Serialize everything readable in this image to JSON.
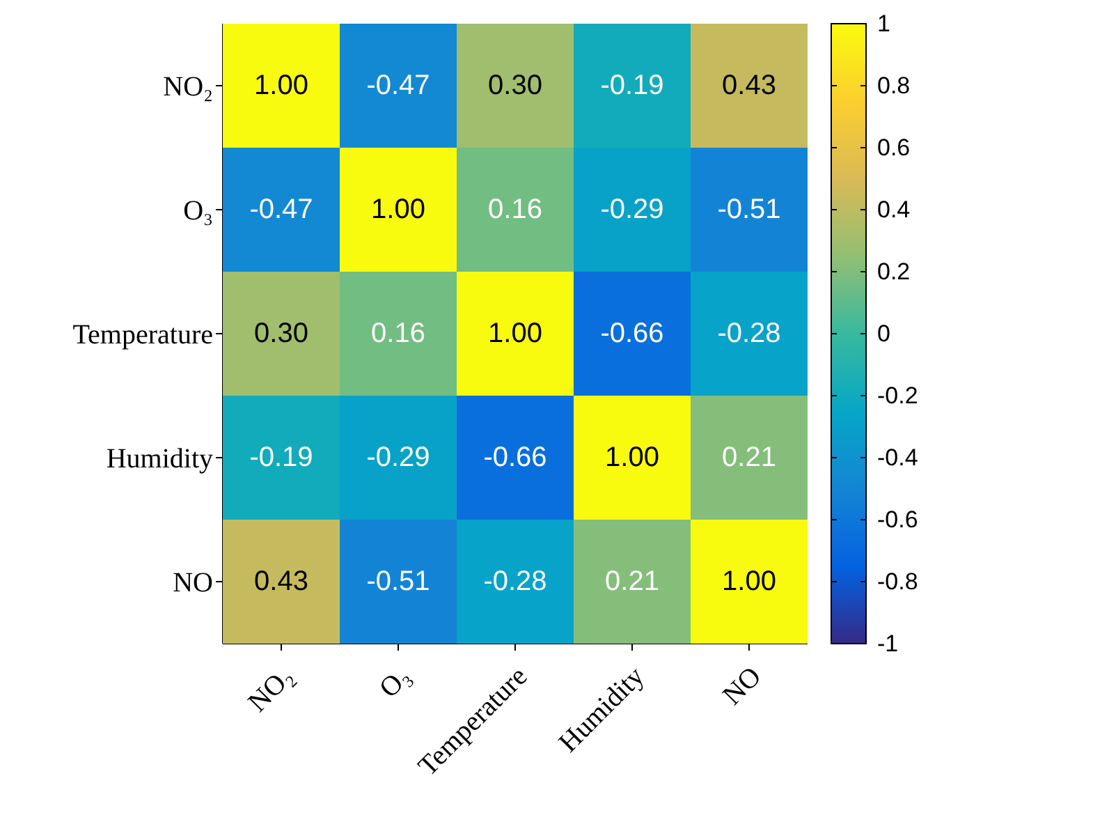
{
  "chart_data": {
    "type": "heatmap",
    "categories": [
      "NO₂",
      "O₃",
      "Temperature",
      "Humidity",
      "NO"
    ],
    "y_categories": [
      "NO₂",
      "O₃",
      "Temperature",
      "Humidity",
      "NO"
    ],
    "cells": [
      [
        1,
        -0.47,
        0.3,
        -0.19,
        0.43
      ],
      [
        -0.47,
        1,
        0.16,
        -0.29,
        -0.51
      ],
      [
        0.3,
        0.16,
        1,
        -0.66,
        -0.28
      ],
      [
        -0.19,
        -0.29,
        -0.66,
        1,
        0.21
      ],
      [
        0.43,
        -0.51,
        -0.28,
        0.21,
        1
      ]
    ],
    "cell_labels": [
      [
        "1.00",
        "-0.47",
        "0.30",
        "-0.19",
        "0.43"
      ],
      [
        "-0.47",
        "1.00",
        "0.16",
        "-0.29",
        "-0.51"
      ],
      [
        "0.30",
        "0.16",
        "1.00",
        "-0.66",
        "-0.28"
      ],
      [
        "-0.19",
        "-0.29",
        "-0.66",
        "1.00",
        "0.21"
      ],
      [
        "0.43",
        "-0.51",
        "-0.28",
        "0.21",
        "1.00"
      ]
    ],
    "clim": [
      -1,
      1
    ],
    "cticks": [
      -1,
      -0.8,
      -0.6,
      -0.4,
      -0.2,
      0,
      0.2,
      0.4,
      0.6,
      0.8,
      1
    ]
  }
}
